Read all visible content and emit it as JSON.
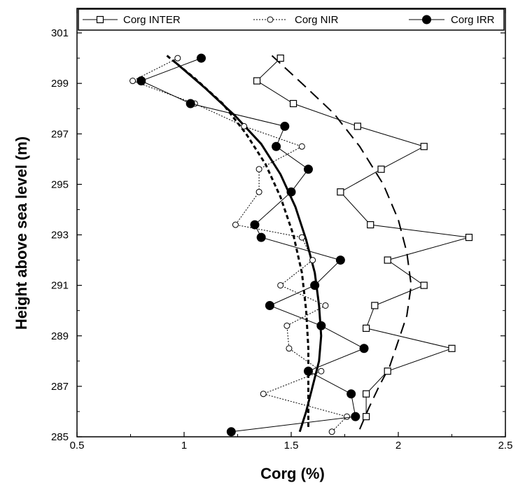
{
  "chart_data": {
    "type": "line",
    "title": "",
    "xlabel": "Corg (%)",
    "ylabel": "Height above sea level (m)",
    "xlim": [
      0.5,
      2.5
    ],
    "ylim": [
      285,
      301
    ],
    "xticks": [
      0.5,
      1,
      1.5,
      2,
      2.5
    ],
    "xtick_labels": [
      "0.5",
      "1",
      "1.5",
      "2",
      "2.5"
    ],
    "yticks": [
      285,
      287,
      289,
      291,
      293,
      295,
      297,
      299,
      301
    ],
    "ytick_labels": [
      "285",
      "287",
      "289",
      "291",
      "293",
      "295",
      "297",
      "299",
      "301"
    ],
    "grid": false,
    "legend_position": "top",
    "series": [
      {
        "name": "Corg INTER",
        "marker": "open-square",
        "line_style": "solid",
        "color": "#000000",
        "points": [
          [
            1.45,
            300.0
          ],
          [
            1.34,
            299.1
          ],
          [
            1.51,
            298.2
          ],
          [
            1.81,
            297.3
          ],
          [
            2.12,
            296.5
          ],
          [
            1.92,
            295.6
          ],
          [
            1.73,
            294.7
          ],
          [
            1.87,
            293.4
          ],
          [
            2.33,
            292.9
          ],
          [
            1.95,
            292.0
          ],
          [
            2.12,
            291.0
          ],
          [
            1.89,
            290.2
          ],
          [
            1.85,
            289.3
          ],
          [
            2.25,
            288.5
          ],
          [
            1.95,
            287.6
          ],
          [
            1.85,
            286.7
          ],
          [
            1.85,
            285.8
          ]
        ]
      },
      {
        "name": "Corg NIR",
        "marker": "open-circle",
        "line_style": "dotted",
        "color": "#000000",
        "points": [
          [
            0.97,
            300.0
          ],
          [
            0.76,
            299.1
          ],
          [
            1.05,
            298.2
          ],
          [
            1.28,
            297.3
          ],
          [
            1.55,
            296.5
          ],
          [
            1.35,
            295.6
          ],
          [
            1.35,
            294.7
          ],
          [
            1.24,
            293.4
          ],
          [
            1.55,
            292.9
          ],
          [
            1.6,
            292.0
          ],
          [
            1.45,
            291.0
          ],
          [
            1.66,
            290.2
          ],
          [
            1.48,
            289.4
          ],
          [
            1.49,
            288.5
          ],
          [
            1.64,
            287.6
          ],
          [
            1.37,
            286.7
          ],
          [
            1.76,
            285.8
          ],
          [
            1.69,
            285.2
          ]
        ]
      },
      {
        "name": "Corg IRR",
        "marker": "filled-circle",
        "line_style": "solid",
        "color": "#000000",
        "points": [
          [
            1.08,
            300.0
          ],
          [
            0.8,
            299.1
          ],
          [
            1.03,
            298.2
          ],
          [
            1.47,
            297.3
          ],
          [
            1.43,
            296.5
          ],
          [
            1.58,
            295.6
          ],
          [
            1.5,
            294.7
          ],
          [
            1.33,
            293.4
          ],
          [
            1.36,
            292.9
          ],
          [
            1.73,
            292.0
          ],
          [
            1.61,
            291.0
          ],
          [
            1.4,
            290.2
          ],
          [
            1.64,
            289.4
          ],
          [
            1.84,
            288.5
          ],
          [
            1.58,
            287.6
          ],
          [
            1.78,
            286.7
          ],
          [
            1.8,
            285.8
          ],
          [
            1.22,
            285.2
          ]
        ]
      }
    ],
    "trend_lines": [
      {
        "style": "long-dash",
        "stroke_width": 2,
        "points": [
          [
            1.41,
            300.1
          ],
          [
            1.55,
            299.0
          ],
          [
            1.7,
            297.8
          ],
          [
            1.82,
            296.5
          ],
          [
            1.93,
            295.0
          ],
          [
            2.0,
            293.6
          ],
          [
            2.04,
            292.3
          ],
          [
            2.06,
            291.0
          ],
          [
            2.04,
            289.8
          ],
          [
            2.0,
            288.8
          ],
          [
            1.96,
            287.8
          ],
          [
            1.91,
            287.0
          ],
          [
            1.86,
            286.1
          ],
          [
            1.82,
            285.3
          ]
        ]
      },
      {
        "style": "short-dash",
        "stroke_width": 3,
        "points": [
          [
            0.92,
            300.1
          ],
          [
            1.05,
            299.2
          ],
          [
            1.18,
            298.2
          ],
          [
            1.29,
            297.0
          ],
          [
            1.38,
            295.8
          ],
          [
            1.45,
            294.5
          ],
          [
            1.51,
            293.0
          ],
          [
            1.55,
            291.5
          ],
          [
            1.57,
            290.0
          ],
          [
            1.58,
            288.5
          ],
          [
            1.58,
            287.0
          ],
          [
            1.58,
            285.3
          ]
        ]
      },
      {
        "style": "solid",
        "stroke_width": 3,
        "points": [
          [
            0.95,
            299.9
          ],
          [
            1.1,
            298.8
          ],
          [
            1.24,
            297.7
          ],
          [
            1.36,
            296.6
          ],
          [
            1.45,
            295.4
          ],
          [
            1.52,
            294.1
          ],
          [
            1.57,
            292.8
          ],
          [
            1.61,
            291.5
          ],
          [
            1.63,
            290.2
          ],
          [
            1.64,
            289.0
          ],
          [
            1.63,
            288.0
          ],
          [
            1.6,
            287.0
          ],
          [
            1.57,
            286.0
          ],
          [
            1.54,
            285.2
          ]
        ]
      }
    ]
  }
}
